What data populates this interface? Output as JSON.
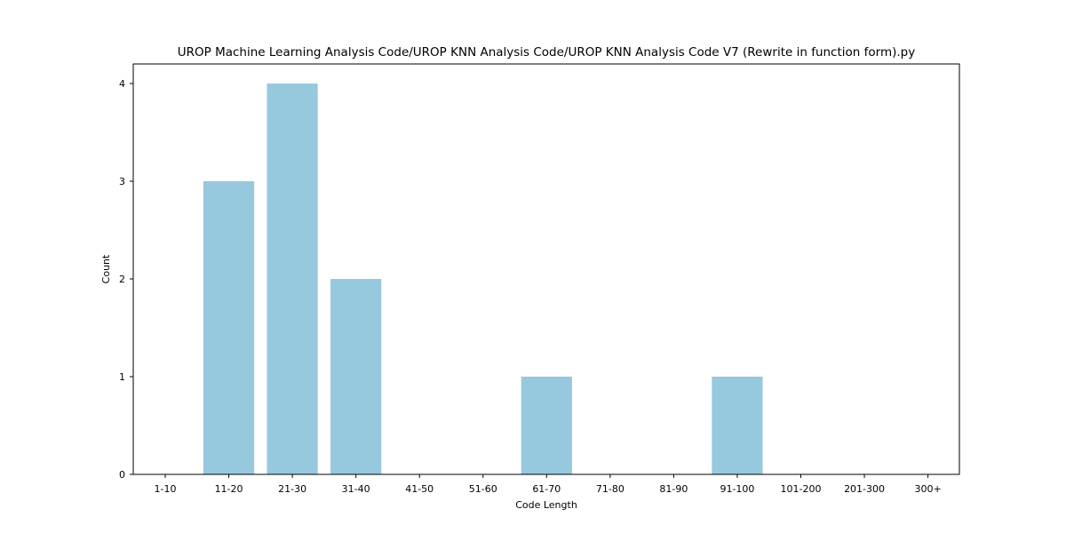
{
  "chart_data": {
    "type": "bar",
    "title": "UROP Machine Learning Analysis Code/UROP KNN Analysis Code/UROP KNN Analysis Code V7 (Rewrite in function form).py",
    "xlabel": "Code Length",
    "ylabel": "Count",
    "categories": [
      "1-10",
      "11-20",
      "21-30",
      "31-40",
      "41-50",
      "51-60",
      "61-70",
      "71-80",
      "81-90",
      "91-100",
      "101-200",
      "201-300",
      "300+"
    ],
    "values": [
      0,
      3,
      4,
      2,
      0,
      0,
      1,
      0,
      0,
      1,
      0,
      0,
      0
    ],
    "yticks": [
      0,
      1,
      2,
      3,
      4
    ],
    "ylim": [
      0,
      4.2
    ],
    "bar_color": "#96c9de",
    "grid": false,
    "legend": "none"
  }
}
